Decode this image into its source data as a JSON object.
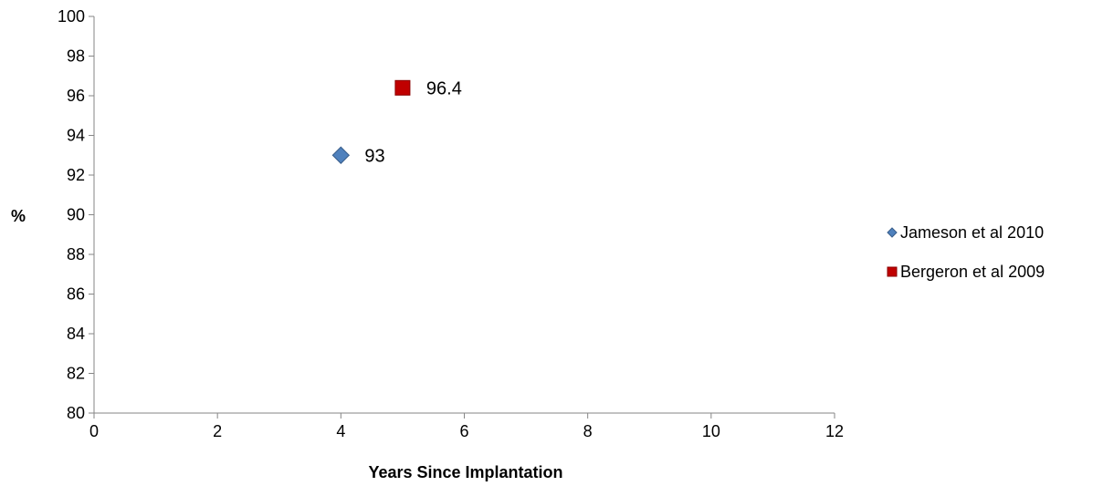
{
  "chart_data": {
    "type": "scatter",
    "xlabel": "Years Since Implantation",
    "ylabel": "%",
    "xlim": [
      0,
      12
    ],
    "ylim": [
      80,
      100
    ],
    "x_ticks": [
      "0",
      "2",
      "4",
      "6",
      "8",
      "10",
      "12"
    ],
    "y_ticks": [
      "80",
      "82",
      "84",
      "86",
      "88",
      "90",
      "92",
      "94",
      "96",
      "98",
      "100"
    ],
    "grid": false,
    "legend_position": "right",
    "series": [
      {
        "name": "Jameson et al 2010",
        "marker": "diamond",
        "color": "#4F81BD",
        "points": [
          {
            "x": 4,
            "y": 93,
            "label": "93"
          }
        ]
      },
      {
        "name": "Bergeron et al 2009",
        "marker": "square",
        "color": "#C00000",
        "points": [
          {
            "x": 5,
            "y": 96.4,
            "label": "96.4"
          }
        ]
      }
    ]
  }
}
